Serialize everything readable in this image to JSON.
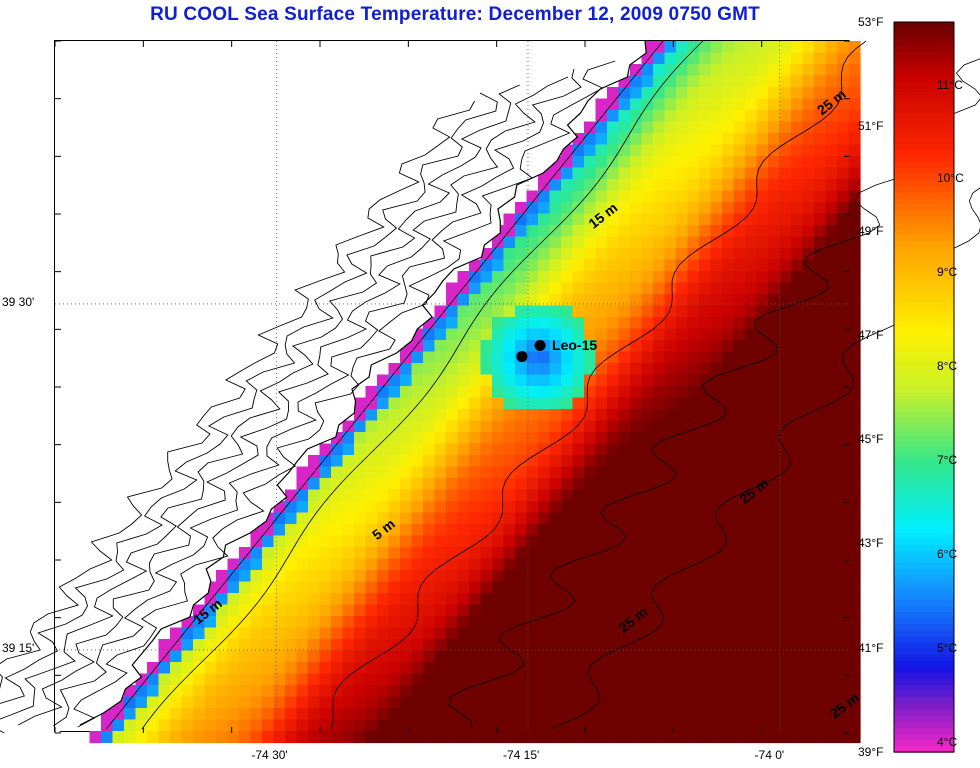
{
  "title": "RU COOL  Sea Surface Temperature:  December 12, 2009 0750 GMT",
  "map": {
    "lon_labels": [
      {
        "text": "-74 30'",
        "lon": -74.5
      },
      {
        "text": "-74 15'",
        "lon": -74.25
      },
      {
        "text": "-74 0'",
        "lon": -74.0
      }
    ],
    "lat_labels": [
      {
        "text": "39 30'",
        "lat": 39.5
      },
      {
        "text": "39 15'",
        "lat": 39.25
      }
    ],
    "extent": {
      "lon_min": -74.72,
      "lon_max": -73.93,
      "lat_min": 39.19,
      "lat_max": 39.69
    },
    "station": {
      "name": "Leo-15",
      "points": [
        [
          -74.238,
          39.47
        ],
        [
          -74.256,
          39.462
        ]
      ]
    },
    "depth_labels": [
      {
        "text": "15 m",
        "lon": -74.185,
        "lat": 39.554
      },
      {
        "text": "25 m",
        "lon": -73.958,
        "lat": 39.636
      },
      {
        "text": "25 m",
        "lon": -74.035,
        "lat": 39.355
      },
      {
        "text": "25 m",
        "lon": -74.155,
        "lat": 39.262
      },
      {
        "text": "5 m",
        "lon": -74.4,
        "lat": 39.329
      },
      {
        "text": "15 m",
        "lon": -74.578,
        "lat": 39.268
      },
      {
        "text": "25 m",
        "lon": -73.945,
        "lat": 39.2
      }
    ]
  },
  "colorbar": {
    "min_f": 39,
    "max_f": 53,
    "f_labels": [
      "53°F",
      "51°F",
      "49°F",
      "47°F",
      "45°F",
      "43°F",
      "41°F",
      "39°F"
    ],
    "c_labels": [
      "11°C",
      "10°C",
      "9°C",
      "8°C",
      "7°C",
      "6°C",
      "5°C",
      "4°C"
    ],
    "f_values": [
      53,
      51,
      49,
      47,
      45,
      43,
      41,
      39
    ],
    "c_values": [
      11,
      10,
      9,
      8,
      7,
      6,
      5,
      4
    ]
  },
  "icons": {
    "station": "station-dot-icon"
  }
}
